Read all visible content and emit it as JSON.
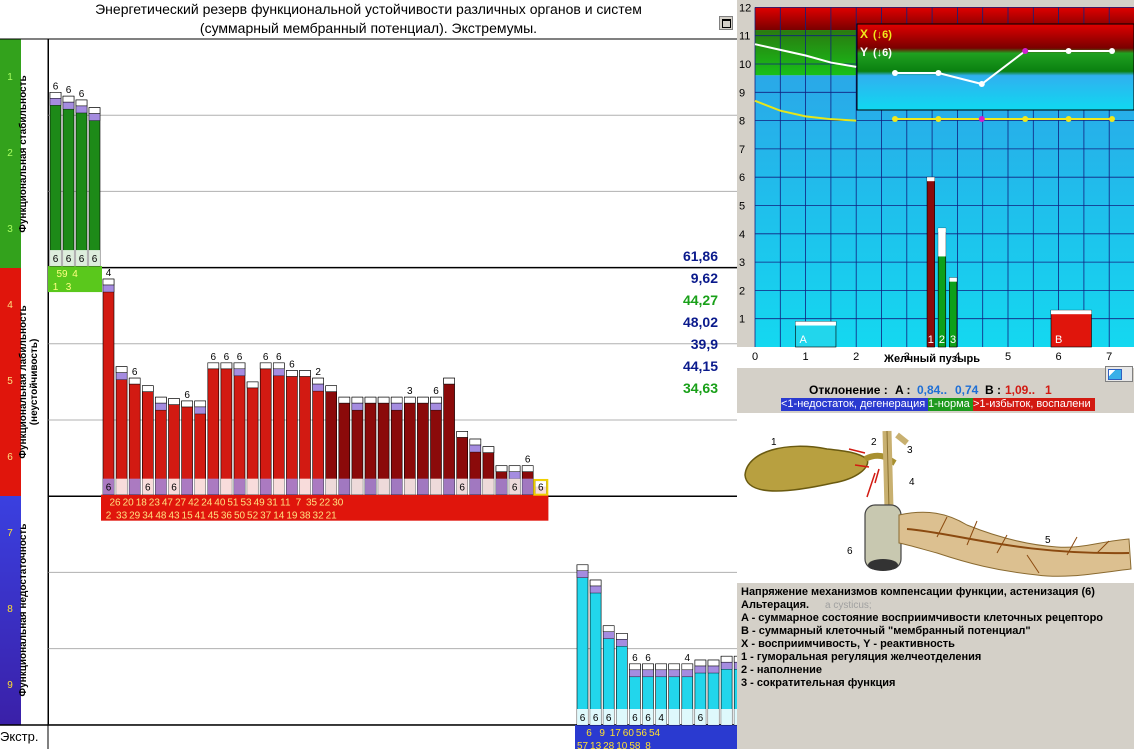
{
  "title": {
    "line1": "Энергетический резерв функциональной устойчивости различных органов и систем",
    "line2": "(суммарный мембранный потенциал). Экстремумы."
  },
  "zones": [
    {
      "label": "Функциональная стабильность",
      "color": "#33a21c",
      "levels": [
        "1",
        "2",
        "3"
      ]
    },
    {
      "label": "Функциональная лабильность (неустойчивость)",
      "color": "#e0150c",
      "levels": [
        "4",
        "5",
        "6"
      ]
    },
    {
      "label": "Функциональная недостаточность",
      "color": "#3a2fd0",
      "levels": [
        "7",
        "8",
        "9"
      ]
    }
  ],
  "extr_label": "Экстр.",
  "summary_values": [
    {
      "text": "61,86",
      "color": "#0a1a8c"
    },
    {
      "text": "9,62",
      "color": "#0a1a8c"
    },
    {
      "text": "44,27",
      "color": "#19a019"
    },
    {
      "text": "48,02",
      "color": "#0a1a8c"
    },
    {
      "text": "39,9",
      "color": "#0a1a8c"
    },
    {
      "text": "44,15",
      "color": "#0a1a8c"
    },
    {
      "text": "34,63",
      "color": "#19a019"
    }
  ],
  "chart_data": [
    {
      "type": "bar",
      "title": "Энергетический резерв функциональной устойчивости различных органов и систем (суммарный мембранный потенциал). Экстремумы.",
      "ylabel": "",
      "ylim": [
        1,
        9.6
      ],
      "y_inverted": true,
      "groups": [
        {
          "zone": "stable",
          "bar_color": "#1d8a18",
          "values": [
            1.7,
            1.75,
            1.8,
            1.9
          ],
          "top_labels": [
            "6",
            "6",
            "6",
            ""
          ],
          "bottom_labels": [
            "6",
            "6",
            "6",
            "6"
          ],
          "row1": [
            "",
            "59",
            "",
            "4"
          ],
          "row2": [
            "1",
            "",
            "3",
            ""
          ]
        },
        {
          "zone": "labile",
          "bar_color": "#d21a12",
          "values": [
            4.15,
            5.3,
            5.45,
            5.55,
            5.7,
            5.72,
            5.75,
            5.75,
            5.25,
            5.25,
            5.25,
            5.5,
            5.25,
            5.25,
            5.35,
            5.35,
            5.45,
            5.55,
            5.7,
            5.7,
            5.7,
            5.7,
            5.7,
            5.7,
            5.7,
            5.7,
            5.45,
            6.15,
            6.25,
            6.35,
            6.6,
            6.6,
            6.6,
            6.8
          ],
          "dark_from": 17,
          "top_labels": [
            "4",
            "",
            "6",
            "",
            "",
            "",
            "6",
            "",
            "6",
            "6",
            "6",
            "",
            "6",
            "6",
            "6",
            "",
            "2",
            "",
            "",
            "",
            "",
            "",
            "",
            "3",
            "",
            "6",
            "",
            "",
            "",
            "",
            "",
            "",
            "6"
          ],
          "bottom_labels": [
            "6",
            "",
            "",
            "6",
            "",
            "6",
            "",
            "",
            "",
            "",
            "",
            "",
            "",
            "",
            "",
            "",
            "",
            "",
            "",
            "",
            "",
            "",
            "",
            "",
            "",
            "",
            "",
            "6",
            "",
            "",
            "",
            "6",
            "",
            "6"
          ],
          "row1": [
            "",
            "26",
            "",
            "20",
            "",
            "18",
            "",
            "23",
            "",
            "47",
            "",
            "27",
            "",
            "42",
            "",
            "24",
            "",
            "40",
            "",
            "51",
            "",
            "53",
            "",
            "49",
            "",
            "31",
            "",
            "11",
            "",
            "7",
            "",
            "35",
            "",
            "22",
            "",
            "30"
          ],
          "row2": [
            "2",
            "",
            "33",
            "",
            "29",
            "",
            "34",
            "",
            "48",
            "",
            "43",
            "",
            "15",
            "",
            "41",
            "",
            "45",
            "",
            "36",
            "",
            "50",
            "",
            "52",
            "",
            "37",
            "",
            "14",
            "",
            "19",
            "",
            "38",
            "",
            "32",
            "",
            "21",
            ""
          ]
        },
        {
          "zone": "insufficient",
          "bar_color": "#22d6ec",
          "values": [
            7.9,
            8.1,
            8.7,
            8.8,
            9.2,
            9.2,
            9.2,
            9.2,
            9.2,
            9.15,
            9.15,
            9.1,
            9.1,
            9.1,
            9.1,
            9.1
          ],
          "top_labels": [
            "",
            "",
            "",
            "",
            "6",
            "6",
            "",
            "",
            "4",
            "",
            "",
            "",
            "",
            "",
            "",
            ""
          ],
          "bottom_labels": [
            "6",
            "6",
            "6",
            "",
            "6",
            "6",
            "4",
            "",
            "",
            "6",
            "",
            "",
            "",
            "",
            "",
            ""
          ],
          "row1": [
            "",
            "6",
            "",
            "9",
            "",
            "17",
            "",
            "60",
            "",
            "56",
            "",
            "54"
          ],
          "row2": [
            "57",
            "",
            "13",
            "",
            "28",
            "",
            "10",
            "",
            "58",
            "",
            "8",
            ""
          ]
        }
      ]
    },
    {
      "type": "bar",
      "title": "Желчный пузырь",
      "xlabel": "Желчный пузырь",
      "ylabel": "",
      "xlim": [
        0,
        7.5
      ],
      "ylim": [
        0,
        12
      ],
      "x_ticks": [
        "0",
        "1",
        "2",
        "3",
        "4",
        "5",
        "6",
        "7"
      ],
      "y_ticks": [
        "1",
        "2",
        "3",
        "4",
        "5",
        "6",
        "7",
        "8",
        "9",
        "10",
        "11",
        "12"
      ],
      "bars": [
        {
          "label": "A",
          "x0": 0.8,
          "x1": 1.6,
          "value": 0.9,
          "color": "#22d6ec"
        },
        {
          "label": "1",
          "x0": 3.4,
          "x1": 3.55,
          "value": 6.0,
          "color": "#8b0a0a"
        },
        {
          "label": "2",
          "x0": 3.62,
          "x1": 3.77,
          "value": 4.2,
          "color": "#0da01a"
        },
        {
          "label": "3",
          "x0": 3.84,
          "x1": 3.99,
          "value": 2.45,
          "color": "#0da01a"
        },
        {
          "label": "B",
          "x0": 5.85,
          "x1": 6.65,
          "value": 1.3,
          "color": "#e0150c"
        }
      ],
      "curves": [
        {
          "name": "white",
          "color": "#ffffff",
          "x": [
            0,
            0.5,
            1,
            1.5,
            2
          ],
          "y": [
            10.7,
            10.5,
            10.3,
            10.05,
            9.9
          ]
        },
        {
          "name": "yellow",
          "color": "#e6e61a",
          "x": [
            0,
            0.5,
            1,
            1.5,
            2
          ],
          "y": [
            8.7,
            8.35,
            8.15,
            8.05,
            8.0
          ]
        }
      ],
      "inset": {
        "x_label": "X",
        "x_value": "6",
        "y_label": "Y",
        "y_value": "6",
        "x_series": [
          3,
          3,
          2,
          5,
          5,
          5
        ],
        "x_series_colors": [
          "#ffffff",
          "#ffffff",
          "#ffffff",
          "#d21ed2",
          "#ffffff",
          "#ffffff"
        ],
        "y_series": [
          1,
          1,
          1,
          1,
          1,
          1
        ],
        "y_series_colors": [
          "#f0e81c",
          "#f0e81c",
          "#d21ed2",
          "#f0e81c",
          "#f0e81c",
          "#f0e81c"
        ]
      }
    }
  ],
  "deviation": {
    "label": "Отклонение :",
    "a_label": "A :",
    "a_val1": "0,84..",
    "a_val2": "0,74",
    "b_label": "B :",
    "b_val1": "1,09..",
    "b_val2": "1"
  },
  "scale_legend": {
    "low": "<1-недостаток, дегенерация",
    "norm": "1-норма",
    "high": ">1-избыток, воспалени"
  },
  "anatomy": {
    "numbers": [
      "1",
      "2",
      "3",
      "4",
      "5",
      "6"
    ],
    "latin": "a cysticus;"
  },
  "legend_text": [
    "Напряжение механизмов компенсации функции, астенизация (6)",
    "Альтерация.",
    "A - суммарное состояние восприимчивости клеточных рецепторо",
    "B - суммарный клеточный \"мембранный потенциал\"",
    "X - восприимчивость, Y - реактивность",
    "1 - гуморальная регуляция желчеотделения",
    "2 - наполнение",
    "3 - сократительная функция"
  ]
}
